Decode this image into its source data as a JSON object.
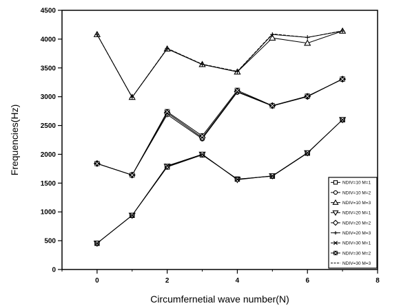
{
  "chart_data": {
    "type": "line",
    "title": "",
    "xlabel": "Circumfernetial wave number(N)",
    "ylabel": "Frequencies(Hz)",
    "xlim": [
      -1,
      8
    ],
    "ylim": [
      0,
      4500
    ],
    "xticks": [
      0,
      2,
      4,
      6,
      8
    ],
    "yticks": [
      0,
      500,
      1000,
      1500,
      2000,
      2500,
      3000,
      3500,
      4000,
      4500
    ],
    "grid": false,
    "legend_position": "bottom-right",
    "x": [
      0,
      1,
      2,
      3,
      4,
      5,
      6,
      7
    ],
    "series": [
      {
        "name": "NDIV=10 M=1",
        "marker": "square",
        "values": [
          455,
          940,
          1780,
          1990,
          1570,
          1620,
          2020,
          2600
        ]
      },
      {
        "name": "NDIV=10 M=2",
        "marker": "circle",
        "values": [
          1840,
          1640,
          2690,
          2270,
          3080,
          2840,
          3000,
          3310
        ]
      },
      {
        "name": "NDIV=10 M=3",
        "marker": "triangle-up",
        "values": [
          4080,
          2990,
          3830,
          3560,
          3430,
          4020,
          3930,
          4140
        ]
      },
      {
        "name": "NDIV=20 M=1",
        "marker": "triangle-down",
        "values": [
          455,
          940,
          1790,
          2000,
          1560,
          1625,
          2025,
          2600
        ]
      },
      {
        "name": "NDIV=20 M=2",
        "marker": "diamond",
        "values": [
          1840,
          1640,
          2720,
          2290,
          3090,
          2845,
          3005,
          3305
        ]
      },
      {
        "name": "NDIV=20 M=3",
        "marker": "plus",
        "values": [
          4080,
          2990,
          3835,
          3560,
          3435,
          4080,
          4030,
          4140
        ]
      },
      {
        "name": "NDIV=30 M=1",
        "marker": "x",
        "values": [
          455,
          940,
          1800,
          2000,
          1565,
          1625,
          2025,
          2600
        ]
      },
      {
        "name": "NDIV=30 M=2",
        "marker": "square-x",
        "values": [
          1840,
          1640,
          2740,
          2320,
          3110,
          2845,
          3010,
          3305
        ]
      },
      {
        "name": "NDIV=30 M=3",
        "marker": "none",
        "values": [
          4080,
          2990,
          3840,
          3565,
          3440,
          4090,
          4030,
          4145
        ]
      }
    ]
  }
}
